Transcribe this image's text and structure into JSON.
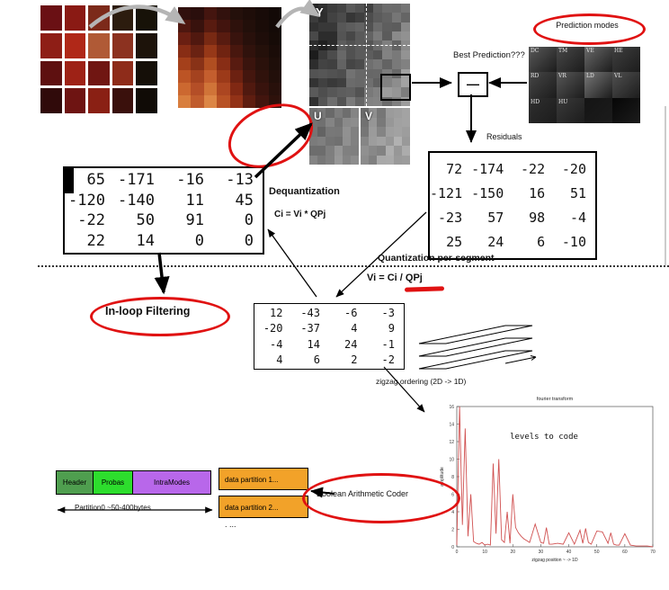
{
  "diagram": {
    "yuv_labels": {
      "y": "Y",
      "u": "U",
      "v": "V"
    },
    "prediction_modes_label": "Prediction modes",
    "best_prediction_label": "Best Prediction???",
    "minus_symbol": "—",
    "residuals_label": "Residuals",
    "dequantization_label": "Dequantization",
    "dequantization_formula": "Ci = Vi * QPj",
    "quantization_label": "Quantization per-segment",
    "quantization_formula": "Vi = Ci / QPj",
    "inloop_label": "In-loop Filtering",
    "zigzag_label": "zigzag ordering  (2D -> 1D)",
    "bac_label": "Boolean Arithmetic Coder",
    "partition0_label": "Partition0  ~50-400bytes",
    "dots_label": ". ...",
    "modes": [
      {
        "label": "DC",
        "bg": "#5a5a5a"
      },
      {
        "label": "TM",
        "bg": "#484848"
      },
      {
        "label": "VE",
        "bg": "#6a6a6a"
      },
      {
        "label": "HE",
        "bg": "#3f3f3f"
      },
      {
        "label": "RD",
        "bg": "#474747"
      },
      {
        "label": "VR",
        "bg": "#585858"
      },
      {
        "label": "LD",
        "bg": "#787878"
      },
      {
        "label": "VL",
        "bg": "#505050"
      },
      {
        "label": "HD",
        "bg": "#2f2f2f"
      },
      {
        "label": "HU",
        "bg": "#3a3a3a"
      },
      {
        "label": "",
        "bg": "#141414"
      },
      {
        "label": "",
        "bg": "#060606"
      }
    ],
    "matrices": {
      "dequantized": [
        [
          "65",
          "-171",
          "-16",
          "-13"
        ],
        [
          "-120",
          "-140",
          "11",
          "45"
        ],
        [
          "-22",
          "50",
          "91",
          "0"
        ],
        [
          "22",
          "14",
          "0",
          "0"
        ]
      ],
      "residuals": [
        [
          "72",
          "-174",
          "-22",
          "-20"
        ],
        [
          "-121",
          "-150",
          "16",
          "51"
        ],
        [
          "-23",
          "57",
          "98",
          "-4"
        ],
        [
          "25",
          "24",
          "6",
          "-10"
        ]
      ],
      "quantized": [
        [
          "12",
          "-43",
          "-6",
          "-3"
        ],
        [
          "-20",
          "-37",
          "4",
          "9"
        ],
        [
          "-4",
          "14",
          "24",
          "-1"
        ],
        [
          "4",
          "6",
          "2",
          "-2"
        ]
      ]
    },
    "bitstream": {
      "segments": [
        {
          "label": "Header",
          "color": "#4f9e4f",
          "width": 40
        },
        {
          "label": "Probas",
          "color": "#2ddd2d",
          "width": 43
        },
        {
          "label": "IntraModes",
          "color": "#b867ea",
          "width": 86
        }
      ],
      "partitions": [
        {
          "label": "data partition 1..."
        },
        {
          "label": "data partition 2..."
        }
      ],
      "partition_color": "#f2a229"
    },
    "textures": {
      "source": [
        [
          "#6a1014",
          "#8a1a14",
          "#7c2a1a",
          "#2c1c0e",
          "#171208"
        ],
        [
          "#8e1e16",
          "#b02818",
          "#b05a36",
          "#8c3220",
          "#1d130a"
        ],
        [
          "#5e1010",
          "#9e2216",
          "#701612",
          "#8e2c1a",
          "#150f08"
        ],
        [
          "#300a0a",
          "#6e1412",
          "#8a2014",
          "#3a100c",
          "#100b06"
        ]
      ],
      "block": [
        [
          "#30100e",
          "#2a0e0c",
          "#44150f",
          "#32110d",
          "#24100b",
          "#1e0d09",
          "#180b08",
          "#120906"
        ],
        [
          "#4e170f",
          "#38120d",
          "#581b10",
          "#42140e",
          "#2e110c",
          "#220f0a",
          "#1a0c08",
          "#140a07"
        ],
        [
          "#6a1f12",
          "#50180f",
          "#782913",
          "#581b10",
          "#38130d",
          "#28100b",
          "#1e0d09",
          "#160b07"
        ],
        [
          "#882d15",
          "#6a2212",
          "#963818",
          "#702311",
          "#48170e",
          "#30120c",
          "#24100a",
          "#1a0c08"
        ],
        [
          "#a4401b",
          "#883217",
          "#b04e21",
          "#882d15",
          "#581b10",
          "#3a140d",
          "#2a110b",
          "#1e0e09"
        ],
        [
          "#bc5425",
          "#a4421f",
          "#c45e2e",
          "#9c3a19",
          "#6c2111",
          "#44160e",
          "#30120c",
          "#220f0a"
        ],
        [
          "#cc6830",
          "#b44e27",
          "#d07438",
          "#ac4621",
          "#802813",
          "#50190f",
          "#38130d",
          "#28100b"
        ],
        [
          "#d87e3e",
          "#c05c2d",
          "#dc8646",
          "#b85225",
          "#923217",
          "#5e1d10",
          "#42150e",
          "#2e110b"
        ]
      ],
      "y": {
        "cols": 11,
        "rows": 11,
        "base": 38,
        "dx": 8,
        "dy": 3,
        "noise": 55,
        "seed": 11
      },
      "u": {
        "cols": 6,
        "rows": 6,
        "base": 105,
        "dx": 5,
        "dy": 3,
        "noise": 35,
        "seed": 5
      },
      "v": {
        "cols": 6,
        "rows": 6,
        "base": 120,
        "dx": 7,
        "dy": 4,
        "noise": 45,
        "seed": 9
      }
    },
    "colors": {
      "accent": "#e01212",
      "arrow_gray": "#b5b5b5",
      "chart_line": "#d05050",
      "partition_orange": "#f2a229"
    }
  },
  "chart_data": {
    "type": "line",
    "title": "fourier transform",
    "inner_label": "levels to code",
    "xlabel": "zigzag position  ~ -> 1D",
    "ylabel": "amplitude",
    "xlim": [
      0,
      70
    ],
    "ylim": [
      0,
      16
    ],
    "grid": false,
    "series": [
      {
        "name": "levels",
        "x": [
          0,
          1,
          2,
          3,
          4,
          5,
          6,
          7,
          8,
          9,
          10,
          11,
          12,
          13,
          14,
          15,
          16,
          17,
          18,
          19,
          20,
          21,
          22,
          23,
          24,
          25,
          26,
          28,
          30,
          31,
          32,
          33,
          34,
          36,
          38,
          40,
          42,
          44,
          45,
          46,
          47,
          48,
          50,
          52,
          54,
          55,
          56,
          57,
          58,
          60,
          62,
          64,
          66,
          68,
          70
        ],
        "y": [
          0.2,
          16,
          2.5,
          13.5,
          1.2,
          6,
          0.6,
          0.4,
          0.3,
          0.5,
          0.2,
          0.3,
          0.2,
          9.5,
          1.5,
          10,
          0.8,
          0.5,
          4,
          0.4,
          6,
          2.2,
          1.6,
          1.2,
          0.9,
          0.7,
          0.5,
          2.6,
          0.5,
          0.4,
          2.2,
          0.3,
          0.3,
          0.4,
          0.3,
          1.6,
          0.3,
          1.9,
          0.4,
          2.1,
          0.5,
          0.3,
          1.8,
          1.7,
          0.4,
          1.6,
          0.3,
          0.2,
          0.2,
          1.5,
          0.2,
          0.1,
          0.1,
          0.1,
          0
        ]
      }
    ]
  }
}
